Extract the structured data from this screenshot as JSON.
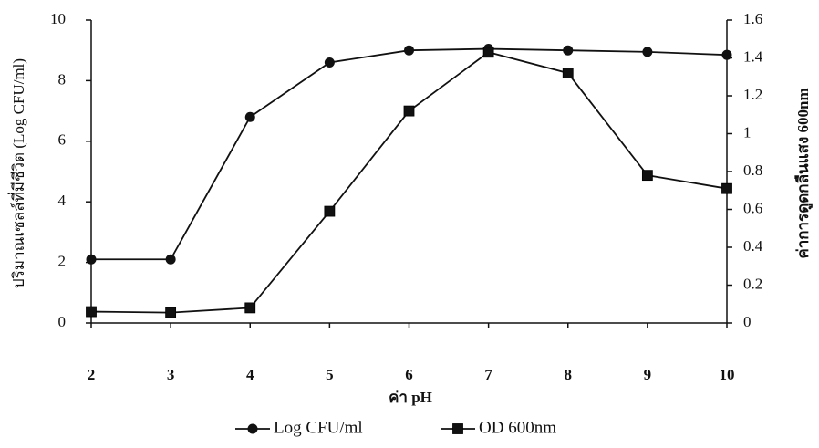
{
  "chart_data": {
    "type": "line",
    "x_label": "ค่า pH",
    "y_label": "ปริมาณเซลล์ที่มีชีวิต (Log CFU/ml)",
    "y2_label": "ค่าการดูดกลืนแสง 600nm",
    "x": [
      2,
      3,
      4,
      5,
      6,
      7,
      8,
      9,
      10
    ],
    "xlim": [
      2,
      10
    ],
    "xticks": [
      2,
      3,
      4,
      5,
      6,
      7,
      8,
      9,
      10
    ],
    "ylim": [
      0,
      10
    ],
    "yticks": [
      0,
      2,
      4,
      6,
      8,
      10
    ],
    "y2lim": [
      0,
      1.6
    ],
    "y2ticks": [
      0,
      0.2,
      0.4,
      0.6,
      0.8,
      1,
      1.2,
      1.4,
      1.6
    ],
    "legend": "bottom",
    "series": [
      {
        "name": "Log CFU/ml",
        "color": "#111111",
        "marker": "circle",
        "values": [
          2.1,
          2.1,
          6.8,
          8.6,
          9.0,
          9.05,
          9.0,
          8.95,
          8.85
        ]
      },
      {
        "name": "OD 600nm",
        "color": "#111111",
        "marker": "square",
        "axis": "y2",
        "values": [
          0.06,
          0.055,
          0.08,
          0.59,
          1.12,
          1.43,
          1.32,
          0.78,
          0.71
        ]
      }
    ]
  }
}
